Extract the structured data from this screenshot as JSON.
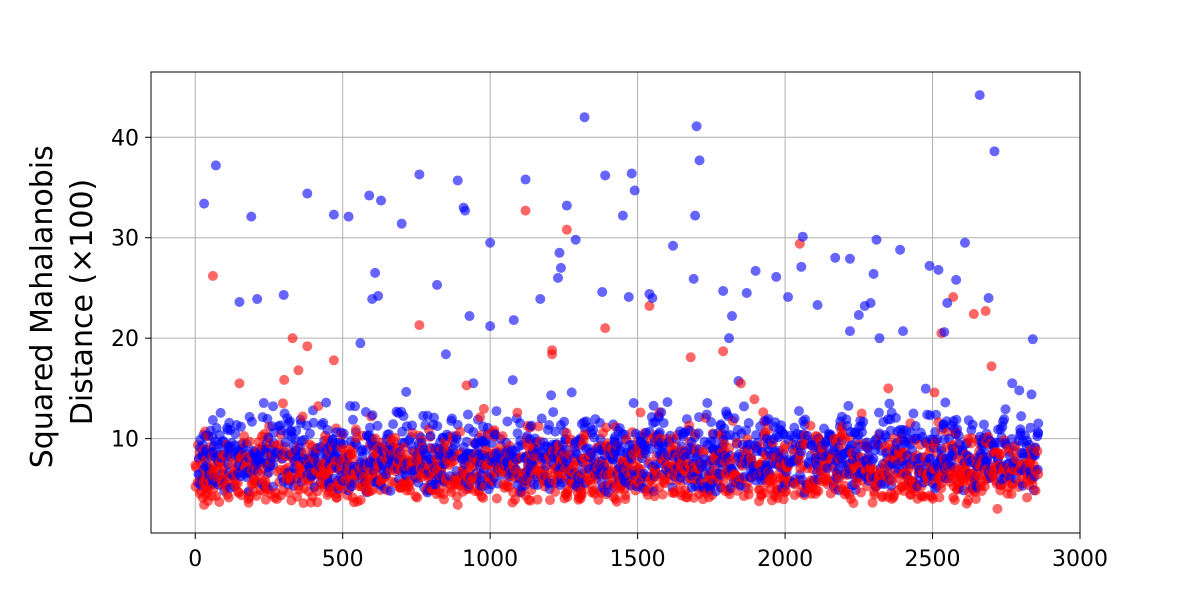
{
  "chart_data": {
    "type": "scatter",
    "title": "",
    "xlabel": "",
    "ylabel": "Squared Mahalanobis Distance (×100)",
    "ylabel_lines": [
      "Squared Mahalanobis",
      "Distance (×100)"
    ],
    "xlim": [
      -150,
      3000
    ],
    "ylim": [
      0.6,
      46.5
    ],
    "xticks": [
      0,
      500,
      1000,
      1500,
      2000,
      2500,
      3000
    ],
    "yticks": [
      10,
      20,
      30,
      40
    ],
    "grid": true,
    "legend": "none",
    "n_points": 2860,
    "series": [
      {
        "color": "#ff0000",
        "opacity": 0.6,
        "seed": 11,
        "bulk_range": [
          3.5,
          11.5
        ],
        "outliers": [
          {
            "x": 60,
            "y": 26.2
          },
          {
            "x": 330,
            "y": 20.0
          },
          {
            "x": 380,
            "y": 19.2
          },
          {
            "x": 470,
            "y": 17.8
          },
          {
            "x": 760,
            "y": 21.3
          },
          {
            "x": 1120,
            "y": 32.7
          },
          {
            "x": 1210,
            "y": 18.8
          },
          {
            "x": 1260,
            "y": 30.8
          },
          {
            "x": 1390,
            "y": 21.0
          },
          {
            "x": 1540,
            "y": 23.2
          },
          {
            "x": 1680,
            "y": 18.1
          },
          {
            "x": 1790,
            "y": 18.7
          },
          {
            "x": 2050,
            "y": 29.4
          },
          {
            "x": 2530,
            "y": 20.5
          },
          {
            "x": 2570,
            "y": 24.1
          },
          {
            "x": 2640,
            "y": 22.4
          },
          {
            "x": 2680,
            "y": 22.7
          },
          {
            "x": 2700,
            "y": 17.2
          },
          {
            "x": 2720,
            "y": 3.0
          },
          {
            "x": 1850,
            "y": 15.5
          },
          {
            "x": 350,
            "y": 16.8
          },
          {
            "x": 150,
            "y": 15.5
          },
          {
            "x": 920,
            "y": 15.3
          },
          {
            "x": 2350,
            "y": 15.0
          },
          {
            "x": 1210,
            "y": 18.4
          },
          {
            "x": 30,
            "y": 3.4
          },
          {
            "x": 890,
            "y": 3.4
          }
        ]
      },
      {
        "color": "#0000ff",
        "opacity": 0.6,
        "seed": 29,
        "bulk_range": [
          4.5,
          13.5
        ],
        "outliers": [
          {
            "x": 30,
            "y": 33.4
          },
          {
            "x": 70,
            "y": 37.2
          },
          {
            "x": 190,
            "y": 32.1
          },
          {
            "x": 150,
            "y": 23.6
          },
          {
            "x": 210,
            "y": 23.9
          },
          {
            "x": 300,
            "y": 24.3
          },
          {
            "x": 380,
            "y": 34.4
          },
          {
            "x": 470,
            "y": 32.3
          },
          {
            "x": 520,
            "y": 32.1
          },
          {
            "x": 590,
            "y": 34.2
          },
          {
            "x": 610,
            "y": 26.5
          },
          {
            "x": 630,
            "y": 33.7
          },
          {
            "x": 600,
            "y": 23.9
          },
          {
            "x": 620,
            "y": 24.2
          },
          {
            "x": 700,
            "y": 31.4
          },
          {
            "x": 760,
            "y": 36.3
          },
          {
            "x": 820,
            "y": 25.3
          },
          {
            "x": 890,
            "y": 35.7
          },
          {
            "x": 910,
            "y": 33.0
          },
          {
            "x": 915,
            "y": 32.7
          },
          {
            "x": 930,
            "y": 22.2
          },
          {
            "x": 1000,
            "y": 29.5
          },
          {
            "x": 1120,
            "y": 35.8
          },
          {
            "x": 1170,
            "y": 23.9
          },
          {
            "x": 1230,
            "y": 26.0
          },
          {
            "x": 1235,
            "y": 28.5
          },
          {
            "x": 1240,
            "y": 27.0
          },
          {
            "x": 1260,
            "y": 33.2
          },
          {
            "x": 1290,
            "y": 29.8
          },
          {
            "x": 1320,
            "y": 42.0
          },
          {
            "x": 1380,
            "y": 24.6
          },
          {
            "x": 1390,
            "y": 36.2
          },
          {
            "x": 1450,
            "y": 32.2
          },
          {
            "x": 1470,
            "y": 24.1
          },
          {
            "x": 1480,
            "y": 36.4
          },
          {
            "x": 1490,
            "y": 34.7
          },
          {
            "x": 1540,
            "y": 24.4
          },
          {
            "x": 1620,
            "y": 29.2
          },
          {
            "x": 1690,
            "y": 25.9
          },
          {
            "x": 1695,
            "y": 32.2
          },
          {
            "x": 1700,
            "y": 41.1
          },
          {
            "x": 1710,
            "y": 37.7
          },
          {
            "x": 1790,
            "y": 24.7
          },
          {
            "x": 1820,
            "y": 22.2
          },
          {
            "x": 1870,
            "y": 24.5
          },
          {
            "x": 1900,
            "y": 26.7
          },
          {
            "x": 1970,
            "y": 26.1
          },
          {
            "x": 2010,
            "y": 24.1
          },
          {
            "x": 2060,
            "y": 30.1
          },
          {
            "x": 2055,
            "y": 27.1
          },
          {
            "x": 2110,
            "y": 23.3
          },
          {
            "x": 2170,
            "y": 28.0
          },
          {
            "x": 2220,
            "y": 27.9
          },
          {
            "x": 2250,
            "y": 22.3
          },
          {
            "x": 2270,
            "y": 23.2
          },
          {
            "x": 2290,
            "y": 23.5
          },
          {
            "x": 2310,
            "y": 29.8
          },
          {
            "x": 2300,
            "y": 26.4
          },
          {
            "x": 2390,
            "y": 28.8
          },
          {
            "x": 2400,
            "y": 20.7
          },
          {
            "x": 2490,
            "y": 27.2
          },
          {
            "x": 2520,
            "y": 26.8
          },
          {
            "x": 2540,
            "y": 20.6
          },
          {
            "x": 2550,
            "y": 23.5
          },
          {
            "x": 2580,
            "y": 25.8
          },
          {
            "x": 2610,
            "y": 29.5
          },
          {
            "x": 2660,
            "y": 44.2
          },
          {
            "x": 2690,
            "y": 24.0
          },
          {
            "x": 2710,
            "y": 38.6
          },
          {
            "x": 2840,
            "y": 19.9
          },
          {
            "x": 2220,
            "y": 20.7
          },
          {
            "x": 1810,
            "y": 20.0
          },
          {
            "x": 1000,
            "y": 21.2
          },
          {
            "x": 1080,
            "y": 21.8
          },
          {
            "x": 560,
            "y": 19.5
          },
          {
            "x": 850,
            "y": 18.4
          },
          {
            "x": 1550,
            "y": 24.0
          },
          {
            "x": 2320,
            "y": 20.0
          }
        ]
      }
    ]
  }
}
